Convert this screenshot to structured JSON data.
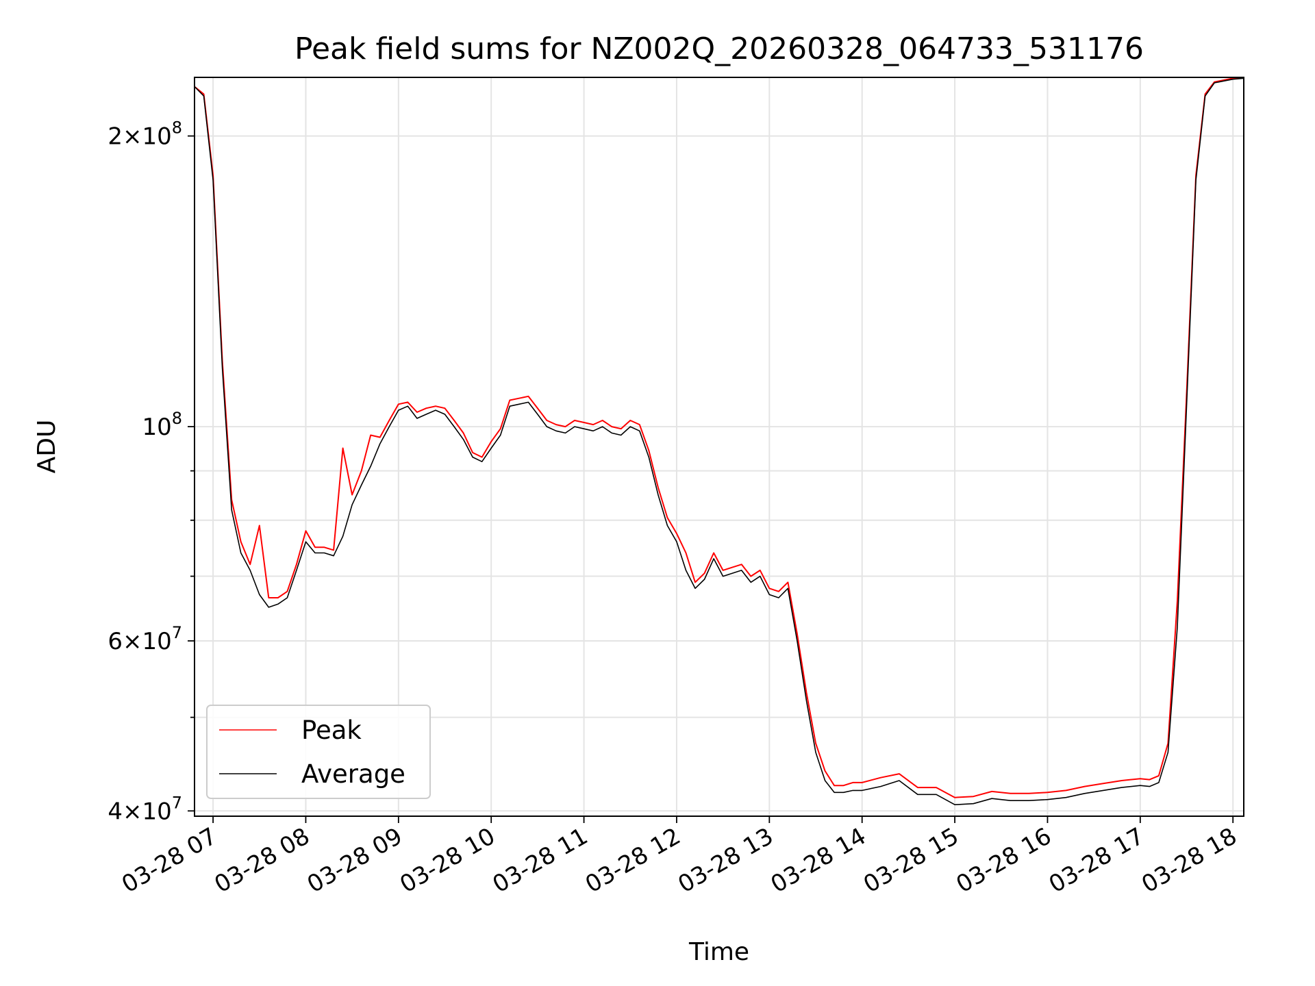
{
  "chart_data": {
    "type": "line",
    "title": "Peak field sums for NZ002Q_20260328_064733_531176",
    "xlabel": "Time",
    "ylabel": "ADU",
    "y_scale": "log",
    "ylim": [
      39500000,
      230000000
    ],
    "xlim": [
      "2026-03-28 06:48",
      "2026-03-28 18:07"
    ],
    "x_ticks": [
      "03-28 07",
      "03-28 08",
      "03-28 09",
      "03-28 10",
      "03-28 11",
      "03-28 12",
      "03-28 13",
      "03-28 14",
      "03-28 15",
      "03-28 16",
      "03-28 17",
      "03-28 18"
    ],
    "y_major_ticks": [
      {
        "value": 40000000,
        "mantissa": "4",
        "exponent": "7"
      },
      {
        "value": 60000000,
        "mantissa": "6",
        "exponent": "7"
      },
      {
        "value": 100000000,
        "mantissa": "",
        "exponent": "8"
      },
      {
        "value": 200000000,
        "mantissa": "2",
        "exponent": "8"
      }
    ],
    "y_minor_ticks": [
      50000000,
      70000000,
      80000000,
      90000000
    ],
    "grid": true,
    "legend_position": "lower-left",
    "series": [
      {
        "name": "Peak",
        "color": "#ff0000"
      },
      {
        "name": "Average",
        "color": "#000000"
      }
    ],
    "x": [
      "06:48",
      "06:54",
      "07:00",
      "07:06",
      "07:12",
      "07:18",
      "07:24",
      "07:30",
      "07:36",
      "07:42",
      "07:48",
      "07:54",
      "08:00",
      "08:06",
      "08:12",
      "08:18",
      "08:24",
      "08:30",
      "08:36",
      "08:42",
      "08:48",
      "08:54",
      "09:00",
      "09:06",
      "09:12",
      "09:18",
      "09:24",
      "09:30",
      "09:36",
      "09:42",
      "09:48",
      "09:54",
      "10:00",
      "10:06",
      "10:12",
      "10:18",
      "10:24",
      "10:30",
      "10:36",
      "10:42",
      "10:48",
      "10:54",
      "11:00",
      "11:06",
      "11:12",
      "11:18",
      "11:24",
      "11:30",
      "11:36",
      "11:42",
      "11:48",
      "11:54",
      "12:00",
      "12:06",
      "12:12",
      "12:18",
      "12:24",
      "12:30",
      "12:36",
      "12:42",
      "12:48",
      "12:54",
      "13:00",
      "13:06",
      "13:12",
      "13:18",
      "13:24",
      "13:30",
      "13:36",
      "13:42",
      "13:48",
      "13:54",
      "14:00",
      "14:12",
      "14:24",
      "14:36",
      "14:48",
      "15:00",
      "15:12",
      "15:24",
      "15:36",
      "15:48",
      "16:00",
      "16:12",
      "16:24",
      "16:36",
      "16:48",
      "17:00",
      "17:06",
      "17:12",
      "17:18",
      "17:24",
      "17:30",
      "17:36",
      "17:42",
      "17:48",
      "17:54",
      "18:00",
      "18:07"
    ],
    "average": [
      225000000,
      220000000,
      180000000,
      115000000,
      82000000,
      74000000,
      71000000,
      67000000,
      65000000,
      65500000,
      66500000,
      71000000,
      76000000,
      74000000,
      74000000,
      73500000,
      77000000,
      83000000,
      87000000,
      91000000,
      96000000,
      100000000,
      104000000,
      105000000,
      102000000,
      103000000,
      104000000,
      103000000,
      100000000,
      97000000,
      93000000,
      92000000,
      95000000,
      98000000,
      105000000,
      105500000,
      106000000,
      103000000,
      100000000,
      99000000,
      98500000,
      100000000,
      99500000,
      99000000,
      100000000,
      98500000,
      98000000,
      100000000,
      99000000,
      93000000,
      85000000,
      79000000,
      76000000,
      71000000,
      68000000,
      69500000,
      73000000,
      70000000,
      70500000,
      71000000,
      69000000,
      70000000,
      67000000,
      66500000,
      68000000,
      60000000,
      52000000,
      46000000,
      43000000,
      41800000,
      41800000,
      42000000,
      42000000,
      42400000,
      43000000,
      41600000,
      41600000,
      40600000,
      40700000,
      41200000,
      41000000,
      41000000,
      41100000,
      41300000,
      41700000,
      42000000,
      42300000,
      42500000,
      42400000,
      42800000,
      46000000,
      62000000,
      105000000,
      180000000,
      220000000,
      227000000,
      228000000,
      229000000,
      229500000
    ],
    "peak": [
      225000000,
      221000000,
      182000000,
      117000000,
      84000000,
      76000000,
      72000000,
      79000000,
      66500000,
      66500000,
      67500000,
      72000000,
      78000000,
      75000000,
      75000000,
      74500000,
      95000000,
      85000000,
      90000000,
      98000000,
      97500000,
      101500000,
      105500000,
      106000000,
      103500000,
      104500000,
      105000000,
      104500000,
      101500000,
      98500000,
      94000000,
      93000000,
      96500000,
      99500000,
      106500000,
      107000000,
      107500000,
      104500000,
      101500000,
      100500000,
      100000000,
      101500000,
      101000000,
      100500000,
      101500000,
      100000000,
      99500000,
      101500000,
      100500000,
      94500000,
      86500000,
      80500000,
      77500000,
      74000000,
      69000000,
      70500000,
      74000000,
      71000000,
      71500000,
      72000000,
      70000000,
      71000000,
      68000000,
      67500000,
      69000000,
      61000000,
      53000000,
      47000000,
      44000000,
      42500000,
      42500000,
      42800000,
      42800000,
      43300000,
      43700000,
      42300000,
      42300000,
      41300000,
      41400000,
      41900000,
      41700000,
      41700000,
      41800000,
      42000000,
      42400000,
      42700000,
      43000000,
      43200000,
      43100000,
      43500000,
      47000000,
      66000000,
      108000000,
      182000000,
      221000000,
      227500000,
      228500000,
      229500000,
      230000000
    ]
  }
}
